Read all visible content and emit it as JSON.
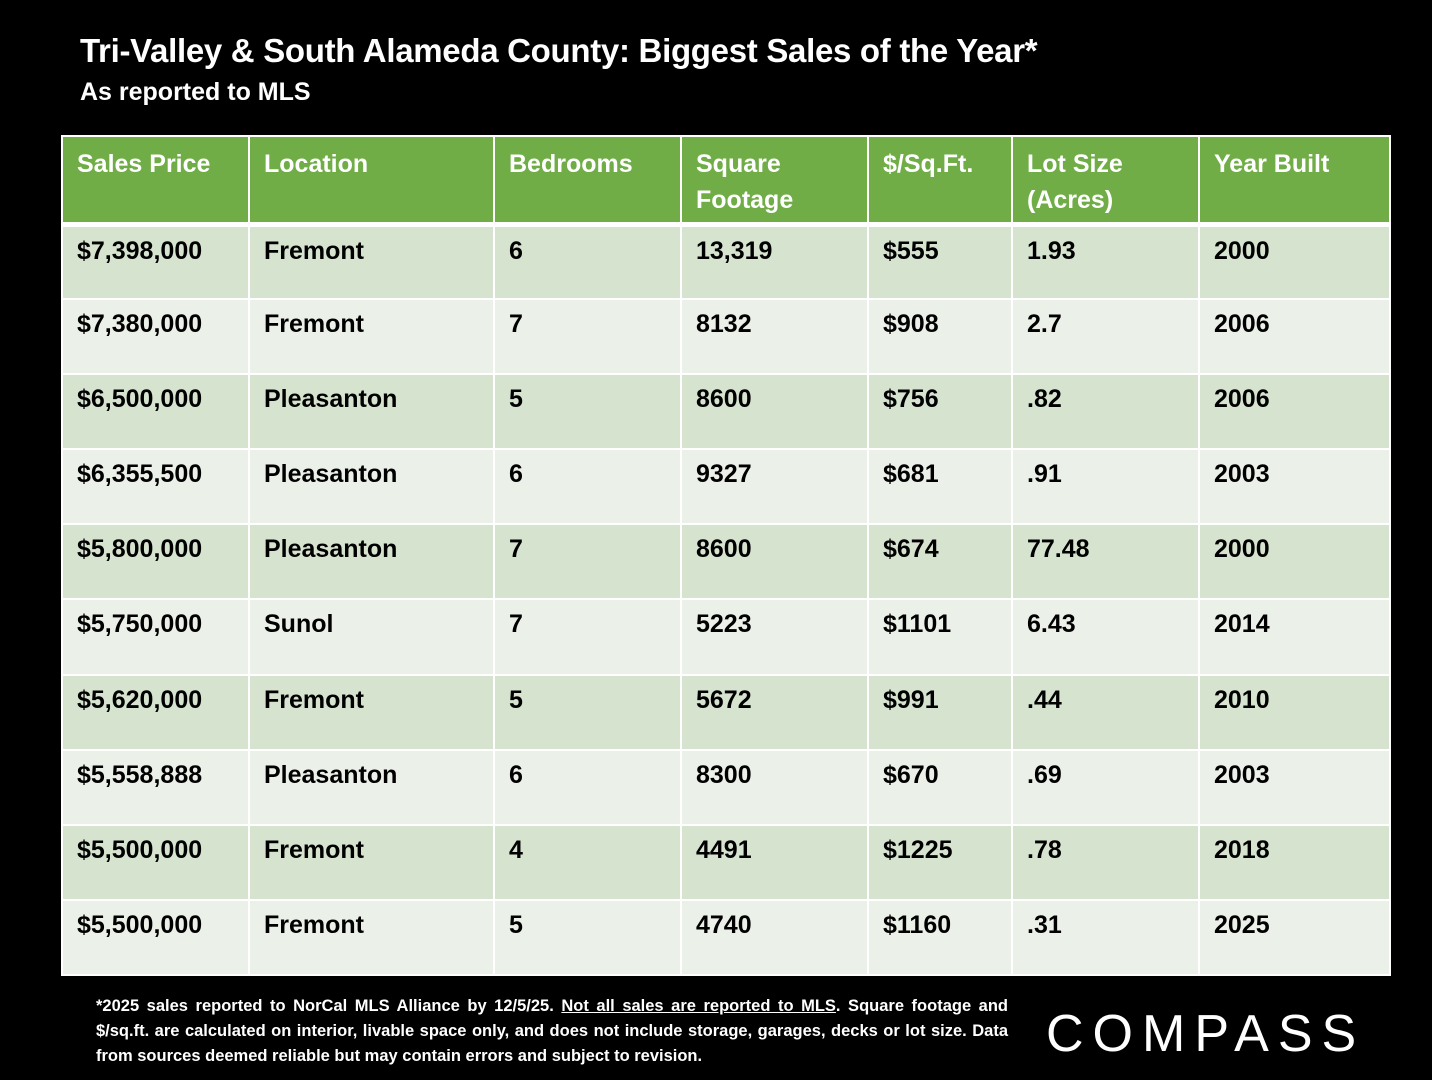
{
  "header": {
    "title": "Tri-Valley & South Alameda County: Biggest Sales of the Year*",
    "subtitle": "As reported to MLS"
  },
  "table": {
    "columns": [
      "Sales Price",
      "Location",
      "Bedrooms",
      "Square Footage",
      "$/Sq.Ft.",
      "Lot Size (Acres)",
      "Year Built"
    ],
    "rows": [
      [
        "$7,398,000",
        "Fremont",
        "6",
        "13,319",
        "$555",
        "1.93",
        "2000"
      ],
      [
        "$7,380,000",
        "Fremont",
        "7",
        "8132",
        "$908",
        "2.7",
        "2006"
      ],
      [
        "$6,500,000",
        "Pleasanton",
        "5",
        "8600",
        "$756",
        ".82",
        "2006"
      ],
      [
        "$6,355,500",
        "Pleasanton",
        "6",
        "9327",
        "$681",
        ".91",
        "2003"
      ],
      [
        "$5,800,000",
        "Pleasanton",
        "7",
        "8600",
        "$674",
        "77.48",
        "2000"
      ],
      [
        "$5,750,000",
        "Sunol",
        "7",
        "5223",
        "$1101",
        "6.43",
        "2014"
      ],
      [
        "$5,620,000",
        "Fremont",
        "5",
        "5672",
        "$991",
        ".44",
        "2010"
      ],
      [
        "$5,558,888",
        "Pleasanton",
        "6",
        "8300",
        "$670",
        ".69",
        "2003"
      ],
      [
        "$5,500,000",
        "Fremont",
        "4",
        "4491",
        "$1225",
        ".78",
        "2018"
      ],
      [
        "$5,500,000",
        "Fremont",
        "5",
        "4740",
        "$1160",
        ".31",
        "2025"
      ]
    ]
  },
  "footnote": {
    "part1": "*2025 sales reported to NorCal MLS Alliance by 12/5/25. ",
    "underlined": "Not all sales are reported to MLS",
    "part2": ". Square footage and $/sq.ft. are calculated on interior, livable space only, and does not include storage, garages, decks or lot size. Data from sources deemed reliable but may contain errors and subject to revision."
  },
  "logo": {
    "text": "COMPASS"
  },
  "colors": {
    "background": "#000000",
    "header_green": "#70ad47",
    "row_dark": "#d6e3cf",
    "row_light": "#ebf0e8"
  }
}
